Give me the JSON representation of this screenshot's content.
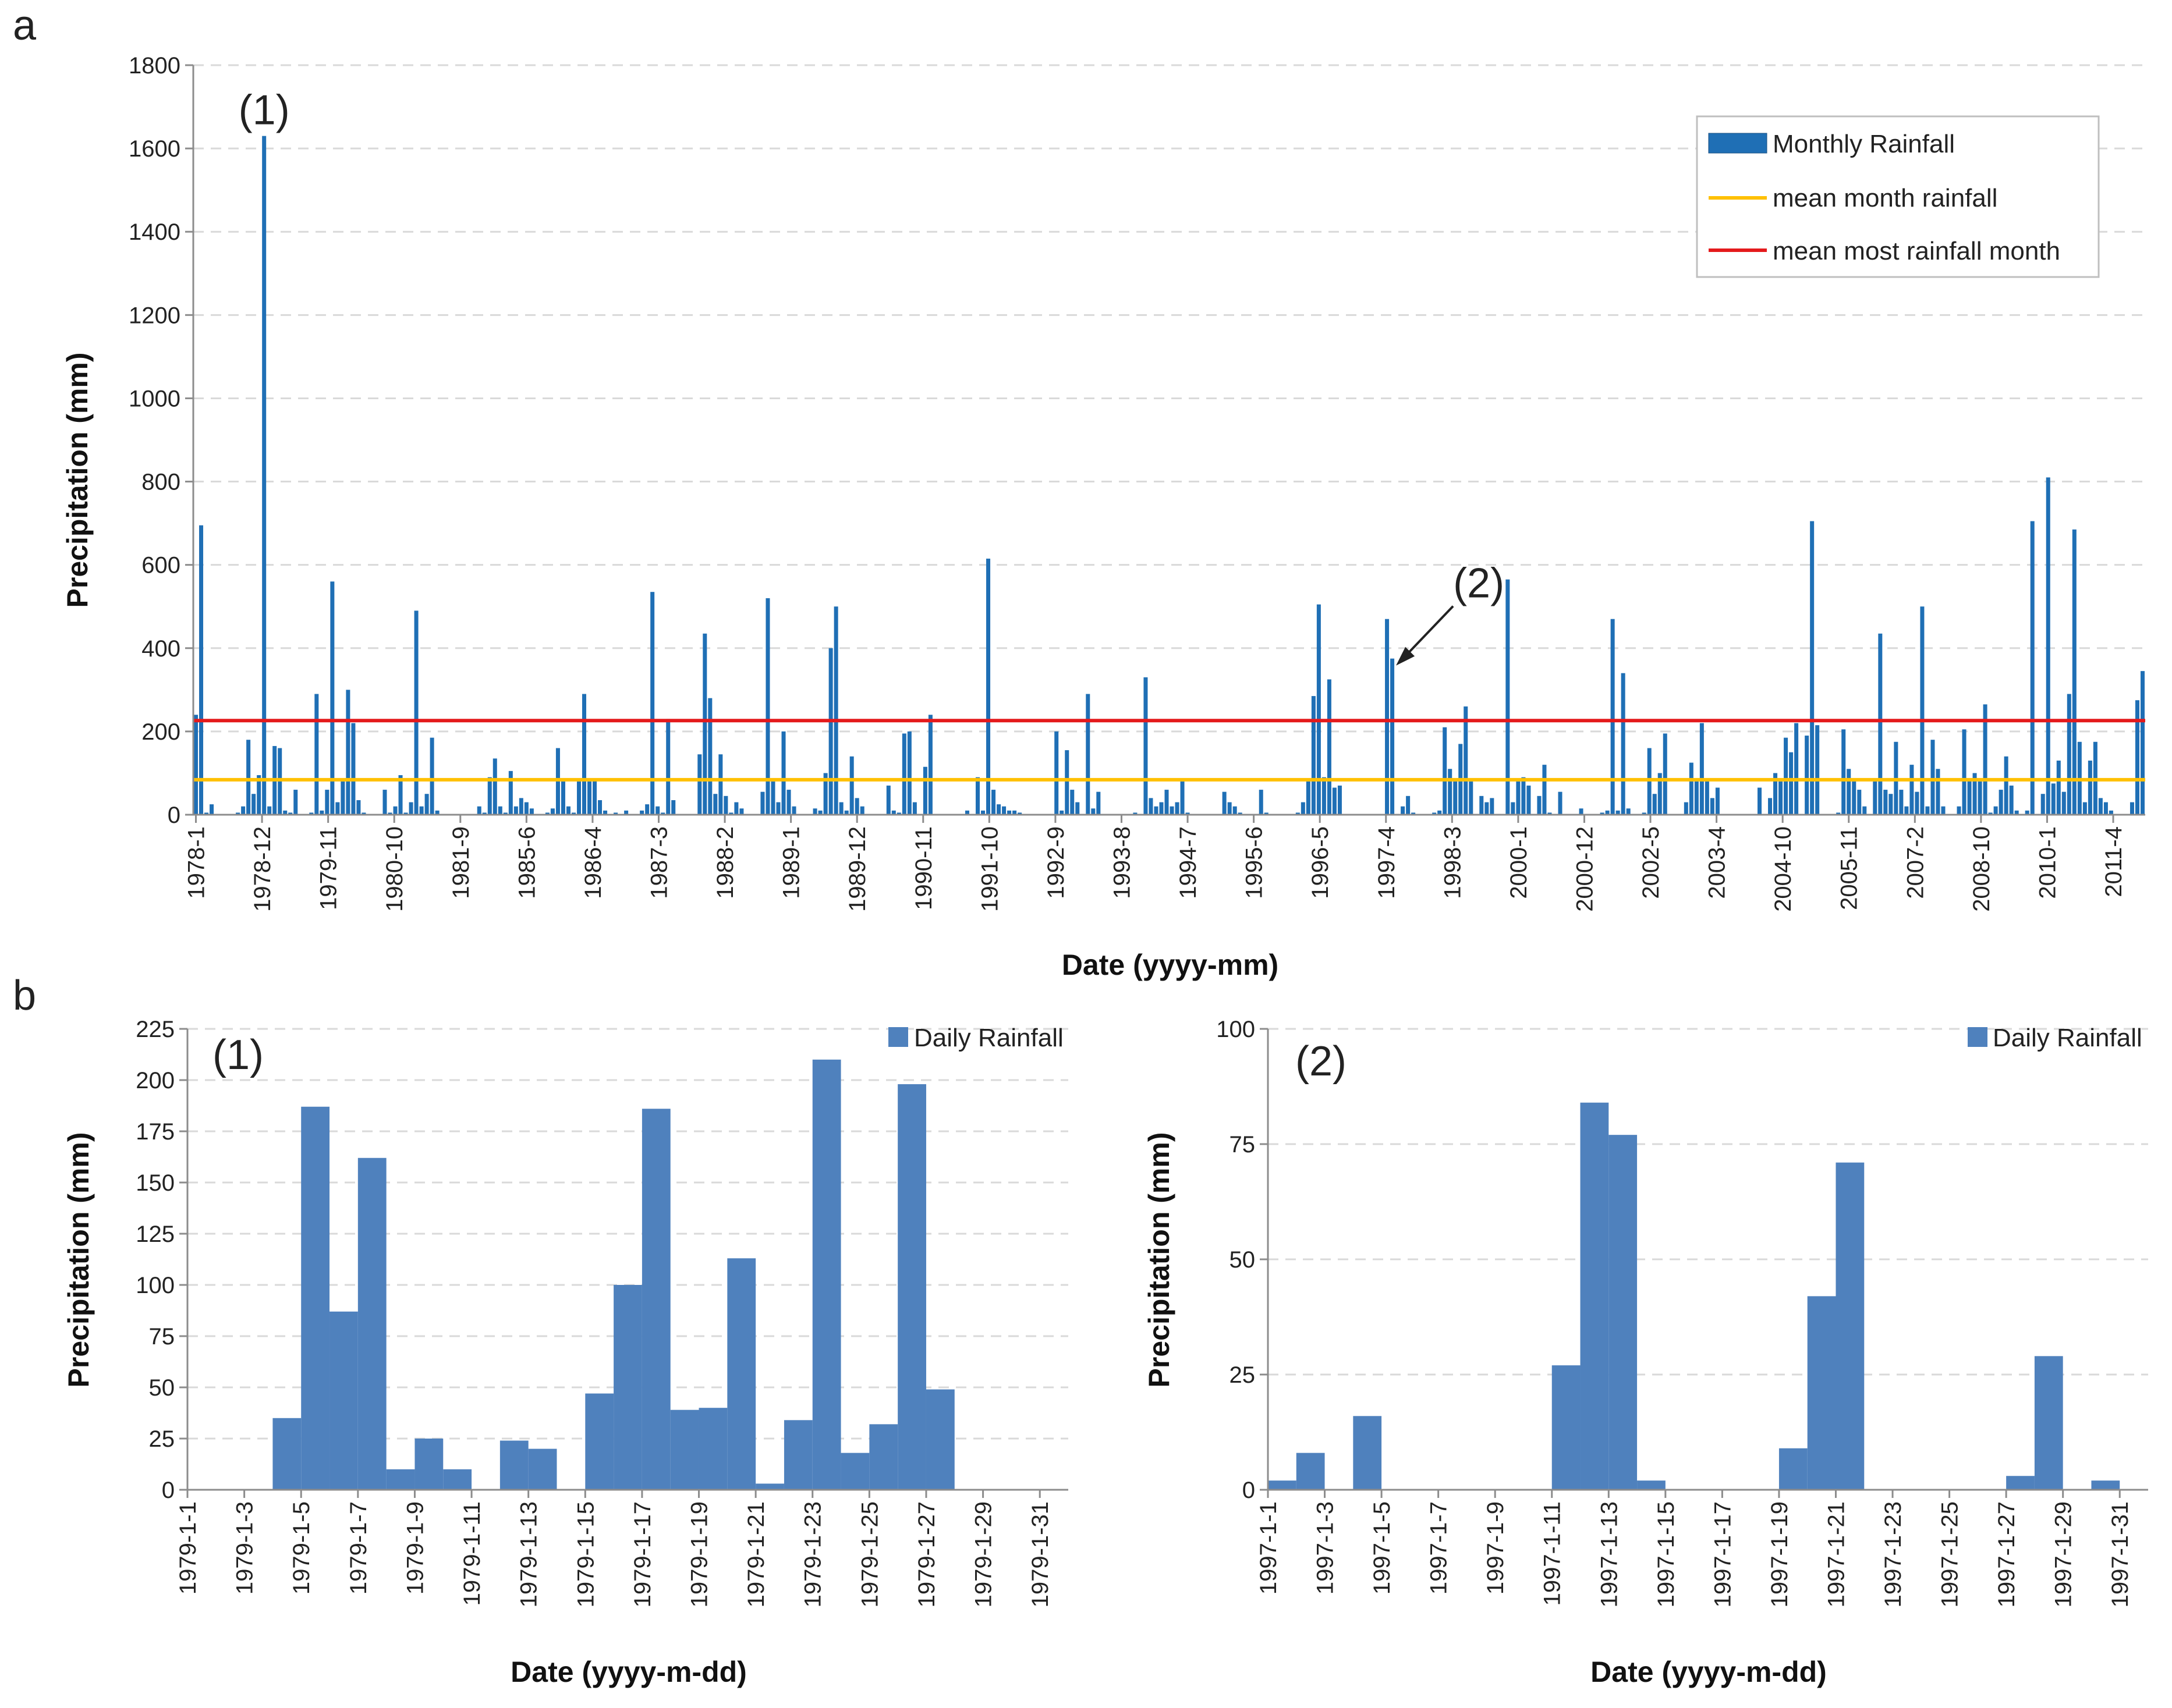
{
  "figure": {
    "panel_a_label": "a",
    "panel_b_label": "b"
  },
  "chart_data": [
    {
      "id": "a",
      "type": "bar",
      "title": "",
      "xlabel": "Date (yyyy-mm)",
      "ylabel": "Precipitation (mm)",
      "ylim": [
        0,
        1800
      ],
      "yticks": [
        0,
        200,
        400,
        600,
        800,
        1000,
        1200,
        1400,
        1600,
        1800
      ],
      "grid": true,
      "legend_position": "top-right",
      "xtick_labels": [
        "1978-1",
        "1978-12",
        "1979-11",
        "1980-10",
        "1981-9",
        "1985-6",
        "1986-4",
        "1987-3",
        "1988-2",
        "1989-1",
        "1989-12",
        "1990-11",
        "1991-10",
        "1992-9",
        "1993-8",
        "1994-7",
        "1995-6",
        "1996-5",
        "1997-4",
        "1998-3",
        "2000-1",
        "2000-12",
        "2002-5",
        "2003-4",
        "2004-10",
        "2005-11",
        "2007-2",
        "2008-10",
        "2010-1",
        "2011-4"
      ],
      "series": [
        {
          "name": "Monthly Rainfall",
          "color": "#1f6fb5",
          "values": [
            240,
            695,
            5,
            25,
            0,
            0,
            0,
            0,
            5,
            20,
            180,
            50,
            95,
            1630,
            20,
            165,
            160,
            10,
            5,
            60,
            0,
            0,
            5,
            290,
            10,
            60,
            560,
            30,
            80,
            300,
            220,
            35,
            5,
            0,
            0,
            0,
            60,
            5,
            20,
            95,
            5,
            30,
            490,
            20,
            50,
            185,
            10,
            0,
            0,
            0,
            0,
            0,
            0,
            0,
            20,
            5,
            90,
            135,
            20,
            5,
            105,
            20,
            40,
            30,
            15,
            0,
            0,
            5,
            15,
            160,
            80,
            20,
            5,
            80,
            290,
            80,
            85,
            35,
            10,
            0,
            5,
            0,
            10,
            0,
            0,
            10,
            25,
            535,
            20,
            5,
            230,
            35,
            0,
            0,
            0,
            0,
            145,
            435,
            280,
            50,
            145,
            45,
            5,
            30,
            15,
            0,
            0,
            0,
            55,
            520,
            80,
            30,
            200,
            60,
            20,
            0,
            0,
            0,
            15,
            10,
            100,
            400,
            500,
            30,
            10,
            140,
            40,
            20,
            0,
            0,
            0,
            0,
            70,
            10,
            5,
            195,
            200,
            30,
            0,
            115,
            240,
            0,
            0,
            0,
            0,
            0,
            0,
            10,
            0,
            90,
            10,
            615,
            60,
            25,
            20,
            10,
            10,
            5,
            0,
            0,
            0,
            0,
            0,
            0,
            200,
            10,
            155,
            60,
            30,
            0,
            290,
            15,
            55,
            0,
            0,
            0,
            0,
            0,
            0,
            5,
            0,
            330,
            40,
            20,
            30,
            60,
            20,
            30,
            80,
            5,
            0,
            0,
            0,
            0,
            0,
            0,
            55,
            30,
            20,
            5,
            0,
            0,
            0,
            60,
            5,
            0,
            0,
            0,
            0,
            0,
            5,
            30,
            80,
            285,
            505,
            90,
            325,
            65,
            70,
            0,
            0,
            0,
            0,
            0,
            0,
            0,
            0,
            470,
            375,
            0,
            20,
            45,
            5,
            0,
            0,
            0,
            5,
            10,
            210,
            110,
            80,
            170,
            260,
            80,
            0,
            45,
            30,
            40,
            0,
            0,
            565,
            30,
            80,
            90,
            70,
            0,
            45,
            120,
            5,
            0,
            55,
            0,
            0,
            0,
            15,
            0,
            0,
            0,
            5,
            10,
            470,
            10,
            340,
            15,
            0,
            0,
            5,
            160,
            50,
            100,
            195,
            0,
            0,
            0,
            30,
            125,
            80,
            220,
            80,
            40,
            65,
            0,
            0,
            0,
            0,
            0,
            0,
            0,
            65,
            0,
            40,
            100,
            80,
            185,
            150,
            220,
            0,
            190,
            705,
            215,
            0,
            0,
            0,
            5,
            205,
            110,
            80,
            60,
            20,
            0,
            80,
            435,
            60,
            50,
            175,
            60,
            20,
            120,
            55,
            500,
            20,
            180,
            110,
            20,
            0,
            0,
            20,
            205,
            85,
            100,
            80,
            265,
            5,
            20,
            60,
            140,
            70,
            10,
            0,
            10,
            705,
            0,
            50,
            810,
            75,
            130,
            55,
            290,
            685,
            175,
            30,
            130,
            175,
            40,
            30,
            10,
            0,
            0,
            0,
            30,
            275,
            345
          ]
        },
        {
          "name": "mean month rainfall",
          "color": "#ffc000",
          "values": [
            84
          ]
        },
        {
          "name": "mean most rainfall month",
          "color": "#e41a1c",
          "values": [
            226
          ]
        }
      ],
      "annotations": [
        {
          "label": "(1)",
          "target_index": 13
        },
        {
          "label": "(2)",
          "target_index": 228
        }
      ]
    },
    {
      "id": "b1",
      "type": "bar",
      "title": "",
      "panel_label": "(1)",
      "xlabel": "Date (yyyy-m-dd)",
      "ylabel": "Precipitation (mm)",
      "ylim": [
        0,
        225
      ],
      "yticks": [
        0,
        25,
        50,
        75,
        100,
        125,
        150,
        175,
        200,
        225
      ],
      "grid": true,
      "legend_position": "top-right",
      "categories": [
        "1979-1-1",
        "1979-1-2",
        "1979-1-3",
        "1979-1-4",
        "1979-1-5",
        "1979-1-6",
        "1979-1-7",
        "1979-1-8",
        "1979-1-9",
        "1979-1-10",
        "1979-1-11",
        "1979-1-12",
        "1979-1-13",
        "1979-1-14",
        "1979-1-15",
        "1979-1-16",
        "1979-1-17",
        "1979-1-18",
        "1979-1-19",
        "1979-1-20",
        "1979-1-21",
        "1979-1-22",
        "1979-1-23",
        "1979-1-24",
        "1979-1-25",
        "1979-1-26",
        "1979-1-27",
        "1979-1-28",
        "1979-1-29",
        "1979-1-30",
        "1979-1-31"
      ],
      "xtick_labels": [
        "1979-1-1",
        "1979-1-3",
        "1979-1-5",
        "1979-1-7",
        "1979-1-9",
        "1979-1-11",
        "1979-1-13",
        "1979-1-15",
        "1979-1-17",
        "1979-1-19",
        "1979-1-21",
        "1979-1-23",
        "1979-1-25",
        "1979-1-27",
        "1979-1-29",
        "1979-1-31"
      ],
      "series": [
        {
          "name": "Daily Rainfall",
          "color": "#4f81bd",
          "values": [
            0,
            0,
            0,
            35,
            187,
            87,
            162,
            10,
            25,
            10,
            0,
            24,
            20,
            0,
            47,
            100,
            186,
            39,
            40,
            113,
            3,
            34,
            210,
            18,
            32,
            198,
            49,
            0,
            0,
            0,
            0
          ]
        }
      ]
    },
    {
      "id": "b2",
      "type": "bar",
      "title": "",
      "panel_label": "(2)",
      "xlabel": "Date (yyyy-m-dd)",
      "ylabel": "Precipitation (mm)",
      "ylim": [
        0,
        100
      ],
      "yticks": [
        0,
        25,
        50,
        75,
        100
      ],
      "grid": true,
      "legend_position": "top-right",
      "categories": [
        "1997-1-1",
        "1997-1-2",
        "1997-1-3",
        "1997-1-4",
        "1997-1-5",
        "1997-1-6",
        "1997-1-7",
        "1997-1-8",
        "1997-1-9",
        "1997-1-10",
        "1997-1-11",
        "1997-1-12",
        "1997-1-13",
        "1997-1-14",
        "1997-1-15",
        "1997-1-16",
        "1997-1-17",
        "1997-1-18",
        "1997-1-19",
        "1997-1-20",
        "1997-1-21",
        "1997-1-22",
        "1997-1-23",
        "1997-1-24",
        "1997-1-25",
        "1997-1-26",
        "1997-1-27",
        "1997-1-28",
        "1997-1-29",
        "1997-1-30",
        "1997-1-31"
      ],
      "xtick_labels": [
        "1997-1-1",
        "1997-1-3",
        "1997-1-5",
        "1997-1-7",
        "1997-1-9",
        "1997-1-11",
        "1997-1-13",
        "1997-1-15",
        "1997-1-17",
        "1997-1-19",
        "1997-1-21",
        "1997-1-23",
        "1997-1-25",
        "1997-1-27",
        "1997-1-29",
        "1997-1-31"
      ],
      "series": [
        {
          "name": "Daily Rainfall",
          "color": "#4f81bd",
          "values": [
            2,
            8,
            0,
            16,
            0,
            0,
            0,
            0,
            0,
            0,
            27,
            84,
            77,
            2,
            0,
            0,
            0,
            0,
            9,
            42,
            71,
            0,
            0,
            0,
            0,
            0,
            3,
            29,
            0,
            2,
            0
          ]
        }
      ]
    }
  ]
}
